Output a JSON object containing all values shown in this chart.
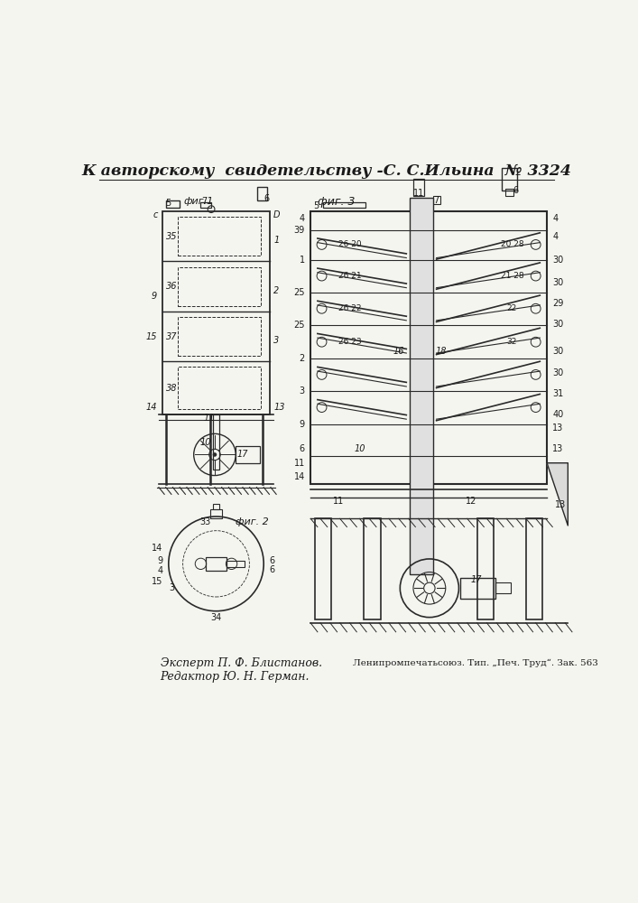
{
  "background_color": "#f5f5f0",
  "page_width": 7.07,
  "page_height": 10.0,
  "header_text": "К авторскому  свидетельству -С. С.Ильина  № 3324",
  "footer_left_line1": "Эксперт П. Ф. Блистанов.",
  "footer_left_line2": "Редактор Ю. Н. Герман.",
  "footer_right": "Ленипромпечатьсоюз. Тип. „Печ. Труд“. Зак. 563",
  "line_color": "#2a2a2a",
  "text_color": "#1a1a1a"
}
